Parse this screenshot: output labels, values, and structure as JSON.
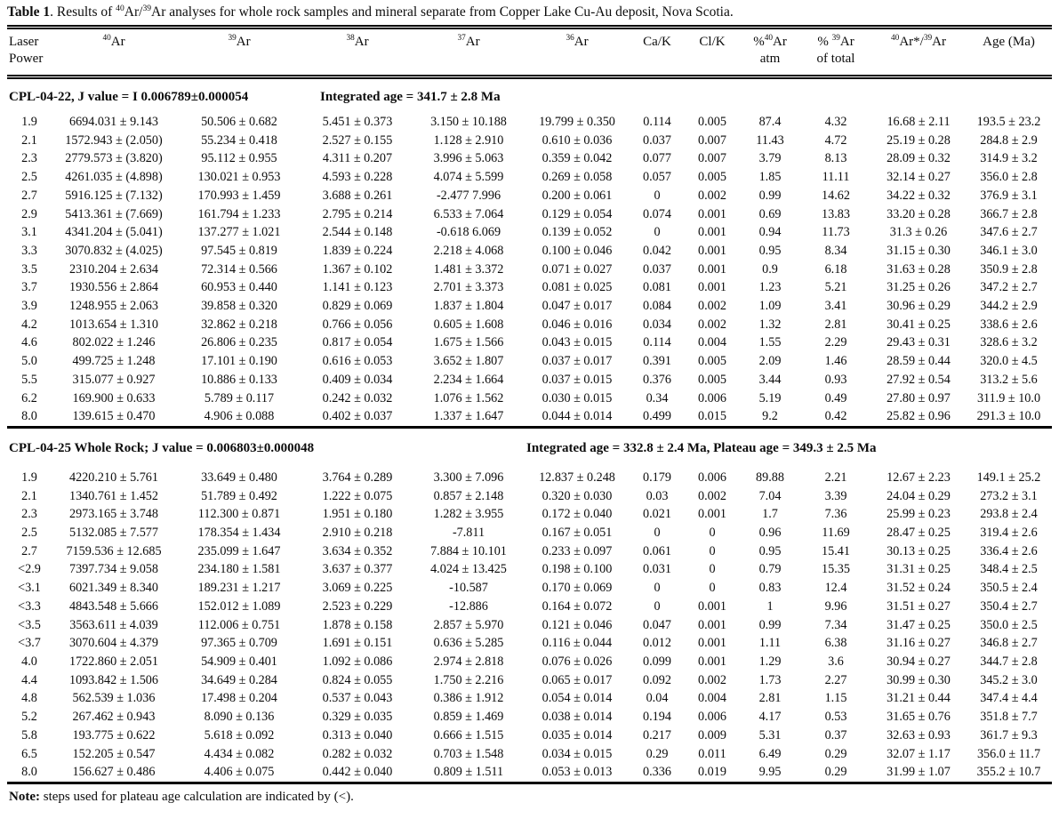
{
  "caption": {
    "label": "Table 1",
    "rest": ". Results of ^{40}Ar/^{39}Ar analyses for whole rock samples and mineral separate from Copper Lake Cu-Au deposit, Nova Scotia."
  },
  "table": {
    "columns": [
      {
        "id": "laser-power",
        "label": "Laser\nPower"
      },
      {
        "id": "ar40",
        "label": "^{40}Ar"
      },
      {
        "id": "ar39",
        "label": "^{39}Ar"
      },
      {
        "id": "ar38",
        "label": "^{38}Ar"
      },
      {
        "id": "ar37",
        "label": "^{37}Ar"
      },
      {
        "id": "ar36",
        "label": "^{36}Ar"
      },
      {
        "id": "ca-k",
        "label": "Ca/K"
      },
      {
        "id": "cl-k",
        "label": "Cl/K"
      },
      {
        "id": "pct-ar40-atm",
        "label": "%^{40}Ar\natm"
      },
      {
        "id": "pct-ar39-of-total",
        "label": "% ^{39}Ar\nof total"
      },
      {
        "id": "ar40star-ar39",
        "label": "^{40}Ar*/^{39}Ar"
      },
      {
        "id": "age-ma",
        "label": "Age (Ma)"
      }
    ],
    "sections": [
      {
        "id": "CPL-04-22",
        "heading": {
          "left": "CPL-04-22,  J value = I 0.006789±0.000054",
          "right": "Integrated age = 341.7 ± 2.8 Ma"
        },
        "rows": [
          [
            "1.9",
            "6694.031 ± 9.143",
            "50.506 ± 0.682",
            "5.451 ± 0.373",
            "3.150 ± 10.188",
            "19.799 ± 0.350",
            "0.114",
            "0.005",
            "87.4",
            "4.32",
            "16.68 ± 2.11",
            "193.5 ± 23.2"
          ],
          [
            "2.1",
            "1572.943 ± (2.050)",
            "55.234 ± 0.418",
            "2.527 ± 0.155",
            "1.128 ± 2.910",
            "0.610 ± 0.036",
            "0.037",
            "0.007",
            "11.43",
            "4.72",
            "25.19 ± 0.28",
            "284.8 ± 2.9"
          ],
          [
            "2.3",
            "2779.573 ± (3.820)",
            "95.112 ± 0.955",
            "4.311 ± 0.207",
            "3.996 ± 5.063",
            "0.359 ± 0.042",
            "0.077",
            "0.007",
            "3.79",
            "8.13",
            "28.09 ± 0.32",
            "314.9 ± 3.2"
          ],
          [
            "2.5",
            "4261.035 ± (4.898)",
            "130.021 ± 0.953",
            "4.593 ± 0.228",
            "4.074 ± 5.599",
            "0.269 ± 0.058",
            "0.057",
            "0.005",
            "1.85",
            "11.11",
            "32.14 ± 0.27",
            "356.0 ± 2.8"
          ],
          [
            "2.7",
            "5916.125 ± (7.132)",
            "170.993 ± 1.459",
            "3.688 ± 0.261",
            "-2.477 7.996",
            "0.200 ± 0.061",
            "0",
            "0.002",
            "0.99",
            "14.62",
            "34.22 ± 0.32",
            "376.9 ± 3.1"
          ],
          [
            "2.9",
            "5413.361 ± (7.669)",
            "161.794 ± 1.233",
            "2.795 ± 0.214",
            "6.533 ± 7.064",
            "0.129 ± 0.054",
            "0.074",
            "0.001",
            "0.69",
            "13.83",
            "33.20 ± 0.28",
            "366.7 ± 2.8"
          ],
          [
            "3.1",
            "4341.204 ± (5.041)",
            "137.277 ± 1.021",
            "2.544 ± 0.148",
            "-0.618 6.069",
            "0.139 ± 0.052",
            "0",
            "0.001",
            "0.94",
            "11.73",
            "31.3 ± 0.26",
            "347.6 ± 2.7"
          ],
          [
            "3.3",
            "3070.832 ± (4.025)",
            "97.545 ± 0.819",
            "1.839 ± 0.224",
            "2.218 ± 4.068",
            "0.100 ± 0.046",
            "0.042",
            "0.001",
            "0.95",
            "8.34",
            "31.15 ± 0.30",
            "346.1 ± 3.0"
          ],
          [
            "3.5",
            "2310.204 ±  2.634",
            "72.314 ± 0.566",
            "1.367 ± 0.102",
            "1.481 ± 3.372",
            "0.071 ± 0.027",
            "0.037",
            "0.001",
            "0.9",
            "6.18",
            "31.63 ± 0.28",
            "350.9 ± 2.8"
          ],
          [
            "3.7",
            "1930.556 ±  2.864",
            "60.953 ± 0.440",
            "1.141 ± 0.123",
            "2.701 ± 3.373",
            "0.081 ± 0.025",
            "0.081",
            "0.001",
            "1.23",
            "5.21",
            "31.25 ± 0.26",
            "347.2 ± 2.7"
          ],
          [
            "3.9",
            "1248.955 ±  2.063",
            "39.858 ± 0.320",
            "0.829 ± 0.069",
            "1.837 ± 1.804",
            "0.047 ± 0.017",
            "0.084",
            "0.002",
            "1.09",
            "3.41",
            "30.96 ± 0.29",
            "344.2 ± 2.9"
          ],
          [
            "4.2",
            "1013.654 ± 1.310",
            "32.862 ± 0.218",
            "0.766 ± 0.056",
            "0.605 ± 1.608",
            "0.046 ± 0.016",
            "0.034",
            "0.002",
            "1.32",
            "2.81",
            "30.41 ± 0.25",
            "338.6 ± 2.6"
          ],
          [
            "4.6",
            "802.022 ± 1.246",
            "26.806 ± 0.235",
            "0.817 ± 0.054",
            "1.675 ± 1.566",
            "0.043 ± 0.015",
            "0.114",
            "0.004",
            "1.55",
            "2.29",
            "29.43 ± 0.31",
            "328.6 ± 3.2"
          ],
          [
            "5.0",
            "499.725 ± 1.248",
            "17.101 ± 0.190",
            "0.616 ± 0.053",
            "3.652 ± 1.807",
            "0.037 ± 0.017",
            "0.391",
            "0.005",
            "2.09",
            "1.46",
            "28.59 ± 0.44",
            "320.0 ± 4.5"
          ],
          [
            "5.5",
            "315.077 ±  0.927",
            "10.886 ± 0.133",
            "0.409 ± 0.034",
            "2.234 ± 1.664",
            "0.037 ± 0.015",
            "0.376",
            "0.005",
            "3.44",
            "0.93",
            "27.92 ± 0.54",
            "313.2 ± 5.6"
          ],
          [
            "6.2",
            "169.900 ±  0.633",
            "5.789 ± 0.117",
            "0.242 ± 0.032",
            "1.076 ± 1.562",
            "0.030 ± 0.015",
            "0.34",
            "0.006",
            "5.19",
            "0.49",
            "27.80 ± 0.97",
            "311.9 ± 10.0"
          ],
          [
            "8.0",
            "139.615 ±  0.470",
            "4.906 ± 0.088",
            "0.402 ± 0.037",
            "1.337 ± 1.647",
            "0.044 ± 0.014",
            "0.499",
            "0.015",
            "9.2",
            "0.42",
            "25.82 ± 0.96",
            "291.3 ± 10.0"
          ]
        ]
      },
      {
        "id": "CPL-04-25",
        "heading": {
          "left": "CPL-04-25 Whole Rock; J value = 0.006803±0.000048",
          "right": "Integrated age = 332.8 ± 2.4 Ma, Plateau age = 349.3 ± 2.5 Ma"
        },
        "rows": [
          [
            "1.9",
            "4220.210 ± 5.761",
            "33.649 ± 0.480",
            "3.764 ± 0.289",
            "3.300 ± 7.096",
            "12.837 ± 0.248",
            "0.179",
            "0.006",
            "89.88",
            "2.21",
            "12.67 ± 2.23",
            "149.1 ± 25.2"
          ],
          [
            "2.1",
            "1340.761 ± 1.452",
            "51.789 ± 0.492",
            "1.222 ± 0.075",
            "0.857 ± 2.148",
            "0.320 ± 0.030",
            "0.03",
            "0.002",
            "7.04",
            "3.39",
            "24.04 ± 0.29",
            "273.2 ± 3.1"
          ],
          [
            "2.3",
            "2973.165 ± 3.748",
            "112.300 ± 0.871",
            "1.951 ± 0.180",
            "1.282 ± 3.955",
            "0.172 ± 0.040",
            "0.021",
            "0.001",
            "1.7",
            "7.36",
            "25.99 ± 0.23",
            "293.8 ± 2.4"
          ],
          [
            "2.5",
            "5132.085 ± 7.577",
            "178.354 ± 1.434",
            "2.910 ± 0.218",
            "-7.811",
            "0.167 ± 0.051",
            "0",
            "0",
            "0.96",
            "11.69",
            "28.47 ± 0.25",
            "319.4 ± 2.6"
          ],
          [
            "2.7",
            "7159.536 ± 12.685",
            "235.099 ± 1.647",
            "3.634 ± 0.352",
            "7.884 ± 10.101",
            "0.233 ± 0.097",
            "0.061",
            "0",
            "0.95",
            "15.41",
            "30.13 ± 0.25",
            "336.4 ± 2.6"
          ],
          [
            "<2.9",
            "7397.734 ± 9.058",
            "234.180 ± 1.581",
            "3.637 ± 0.377",
            "4.024 ± 13.425",
            "0.198 ± 0.100",
            "0.031",
            "0",
            "0.79",
            "15.35",
            "31.31 ± 0.25",
            "348.4 ± 2.5"
          ],
          [
            "<3.1",
            "6021.349 ± 8.340",
            "189.231 ± 1.217",
            "3.069 ± 0.225",
            "-10.587",
            "0.170 ± 0.069",
            "0",
            "0",
            "0.83",
            "12.4",
            "31.52 ± 0.24",
            "350.5 ± 2.4"
          ],
          [
            "<3.3",
            "4843.548 ± 5.666",
            "152.012 ± 1.089",
            "2.523 ± 0.229",
            "-12.886",
            "0.164 ± 0.072",
            "0",
            "0.001",
            "1",
            "9.96",
            "31.51 ± 0.27",
            "350.4 ± 2.7"
          ],
          [
            "<3.5",
            "3563.611 ± 4.039",
            "112.006 ± 0.751",
            "1.878 ± 0.158",
            "2.857 ± 5.970",
            "0.121 ± 0.046",
            "0.047",
            "0.001",
            "0.99",
            "7.34",
            "31.47 ± 0.25",
            "350.0 ± 2.5"
          ],
          [
            "<3.7",
            "3070.604 ± 4.379",
            "97.365 ± 0.709",
            "1.691 ± 0.151",
            "0.636 ± 5.285",
            "0.116 ± 0.044",
            "0.012",
            "0.001",
            "1.11",
            "6.38",
            "31.16 ± 0.27",
            "346.8 ± 2.7"
          ],
          [
            "4.0",
            "1722.860 ± 2.051",
            "54.909 ± 0.401",
            "1.092 ± 0.086",
            "2.974 ± 2.818",
            "0.076 ± 0.026",
            "0.099",
            "0.001",
            "1.29",
            "3.6",
            "30.94 ± 0.27",
            "344.7 ± 2.8"
          ],
          [
            "4.4",
            "1093.842 ± 1.506",
            "34.649 ± 0.284",
            "0.824 ± 0.055",
            "1.750 ± 2.216",
            "0.065 ± 0.017",
            "0.092",
            "0.002",
            "1.73",
            "2.27",
            "30.99 ± 0.30",
            "345.2 ± 3.0"
          ],
          [
            "4.8",
            "562.539 ± 1.036",
            "17.498 ± 0.204",
            "0.537 ± 0.043",
            "0.386 ± 1.912",
            "0.054 ± 0.014",
            "0.04",
            "0.004",
            "2.81",
            "1.15",
            "31.21 ± 0.44",
            "347.4 ± 4.4"
          ],
          [
            "5.2",
            "267.462 ± 0.943",
            "8.090 ± 0.136",
            "0.329 ± 0.035",
            "0.859 ± 1.469",
            "0.038 ± 0.014",
            "0.194",
            "0.006",
            "4.17",
            "0.53",
            "31.65 ± 0.76",
            "351.8 ± 7.7"
          ],
          [
            "5.8",
            "193.775 ± 0.622",
            "5.618 ± 0.092",
            "0.313 ± 0.040",
            "0.666 ± 1.515",
            "0.035 ± 0.014",
            "0.217",
            "0.009",
            "5.31",
            "0.37",
            "32.63 ± 0.93",
            "361.7 ± 9.3"
          ],
          [
            "6.5",
            "152.205 ± 0.547",
            "4.434 ± 0.082",
            "0.282 ± 0.032",
            "0.703 ± 1.548",
            "0.034 ± 0.015",
            "0.29",
            "0.011",
            "6.49",
            "0.29",
            "32.07 ± 1.17",
            "356.0 ± 11.7"
          ],
          [
            "8.0",
            "156.627 ± 0.486",
            "4.406 ± 0.075",
            "0.442 ± 0.040",
            "0.809 ± 1.511",
            "0.053 ± 0.013",
            "0.336",
            "0.019",
            "9.95",
            "0.29",
            "31.99 ± 1.07",
            "355.2 ± 10.7"
          ]
        ]
      }
    ]
  },
  "note": {
    "label": "Note:",
    "text": " steps used for plateau age calculation are indicated by (<)."
  }
}
